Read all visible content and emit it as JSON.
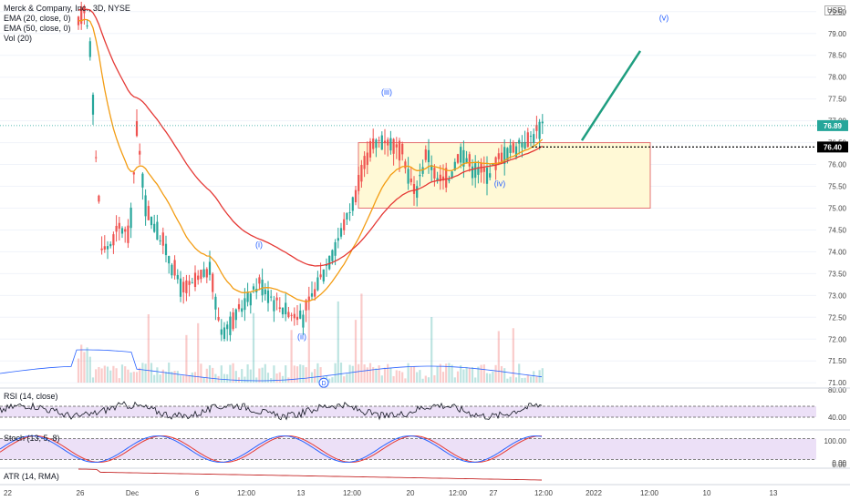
{
  "header": {
    "title": "Merck & Company, Inc., 3D, NYSE",
    "indicators": [
      "EMA (20, close, 0)",
      "EMA (50, close, 0)",
      "Vol (20)"
    ],
    "currency": "USD"
  },
  "colors": {
    "up": "#26a69a",
    "down": "#ef5350",
    "ema20": "#f39c12",
    "ema50": "#e53935",
    "box_fill": "#fff9d6",
    "box_border": "#e57373",
    "arrow": "#1f9e80",
    "wave_label": "#2962ff",
    "rsi_band": "#ece0f7",
    "stoch_fast": "#2962ff",
    "stoch_slow": "#e53935",
    "atr": "#c62828",
    "vol_ma": "#2962ff"
  },
  "chart_data": {
    "type": "candlestick",
    "price_axis": [
      "79.50",
      "79.00",
      "78.50",
      "78.00",
      "77.50",
      "77.00",
      "76.50",
      "76.00",
      "75.50",
      "75.00",
      "74.50",
      "74.00",
      "73.50",
      "73.00",
      "72.50",
      "72.00",
      "71.50",
      "71.00"
    ],
    "ylim": [
      70.9,
      79.6
    ],
    "last_price": "76.89",
    "level_price": "76.40",
    "x_tick_labels": [
      "22",
      "26",
      "Dec",
      "6",
      "12:00",
      "13",
      "12:00",
      "20",
      "12:00",
      "27",
      "12:00",
      "2022",
      "12:00",
      "10",
      "13"
    ],
    "wave_labels": [
      "(i)",
      "(ii)",
      "(iii)",
      "(iv)",
      "(v)"
    ],
    "earnings_marker": "D",
    "consolidation_box": {
      "price_high": 76.5,
      "price_low": 75.0
    },
    "rsi": {
      "label": "RSI (14, close)",
      "axis": [
        "80.00",
        "40.00"
      ],
      "band": [
        40,
        60
      ]
    },
    "stoch": {
      "label": "Stoch (13, 5, 8)",
      "axis": [
        "100.00",
        "0.00"
      ],
      "band": [
        20,
        80
      ]
    },
    "atr": {
      "label": "ATR (14, RMA)",
      "axis": [
        "0.00"
      ]
    }
  }
}
